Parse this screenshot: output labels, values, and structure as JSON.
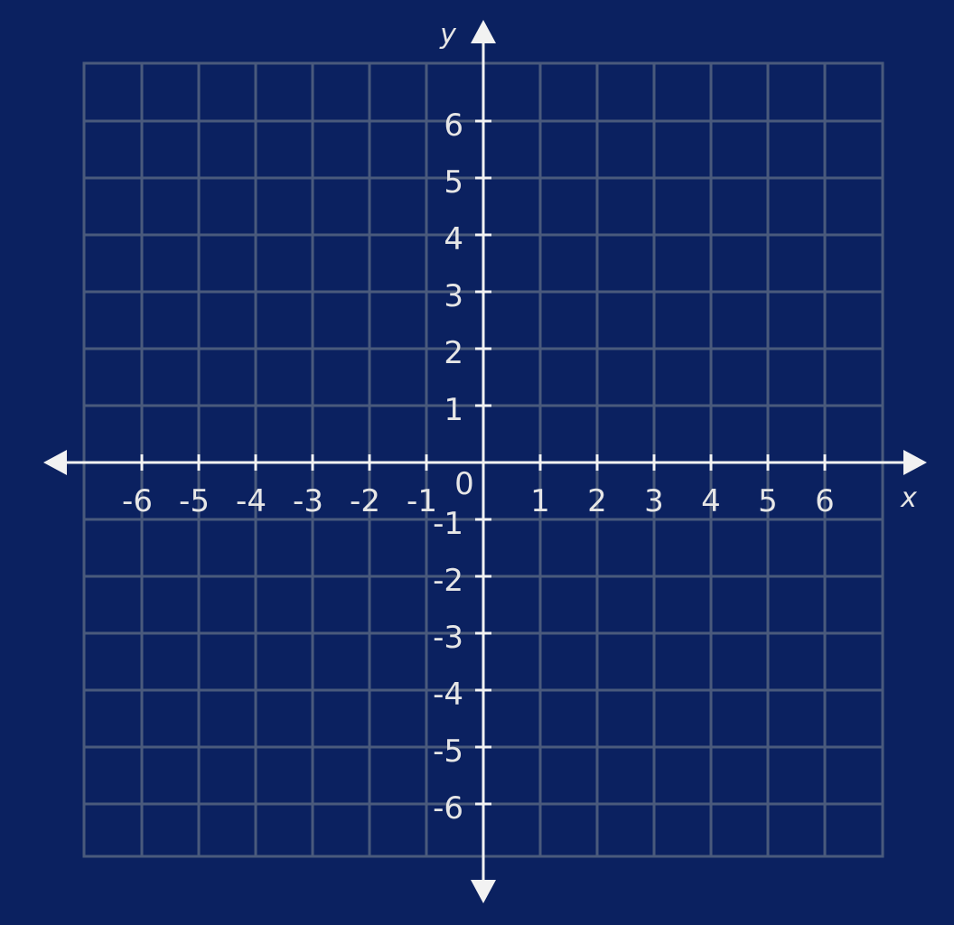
{
  "chart_data": {
    "type": "coordinate-grid",
    "xlabel": "x",
    "ylabel": "y",
    "origin_label": "0",
    "xlim": [
      -7,
      7
    ],
    "ylim": [
      -7,
      7
    ],
    "grid": true,
    "x_ticks": [
      "-6",
      "-5",
      "-4",
      "-3",
      "-2",
      "-1",
      "1",
      "2",
      "3",
      "4",
      "5",
      "6"
    ],
    "y_ticks": [
      "6",
      "5",
      "4",
      "3",
      "2",
      "1",
      "-1",
      "-2",
      "-3",
      "-4",
      "-5",
      "-6"
    ],
    "x_tick_values": [
      -6,
      -5,
      -4,
      -3,
      -2,
      -1,
      1,
      2,
      3,
      4,
      5,
      6
    ],
    "y_tick_values": [
      6,
      5,
      4,
      3,
      2,
      1,
      -1,
      -2,
      -3,
      -4,
      -5,
      -6
    ]
  },
  "colors": {
    "background": "#0b2160",
    "grid": "#4a5a7c",
    "axis": "#f2f2f2",
    "text": "#e6e6e6"
  }
}
